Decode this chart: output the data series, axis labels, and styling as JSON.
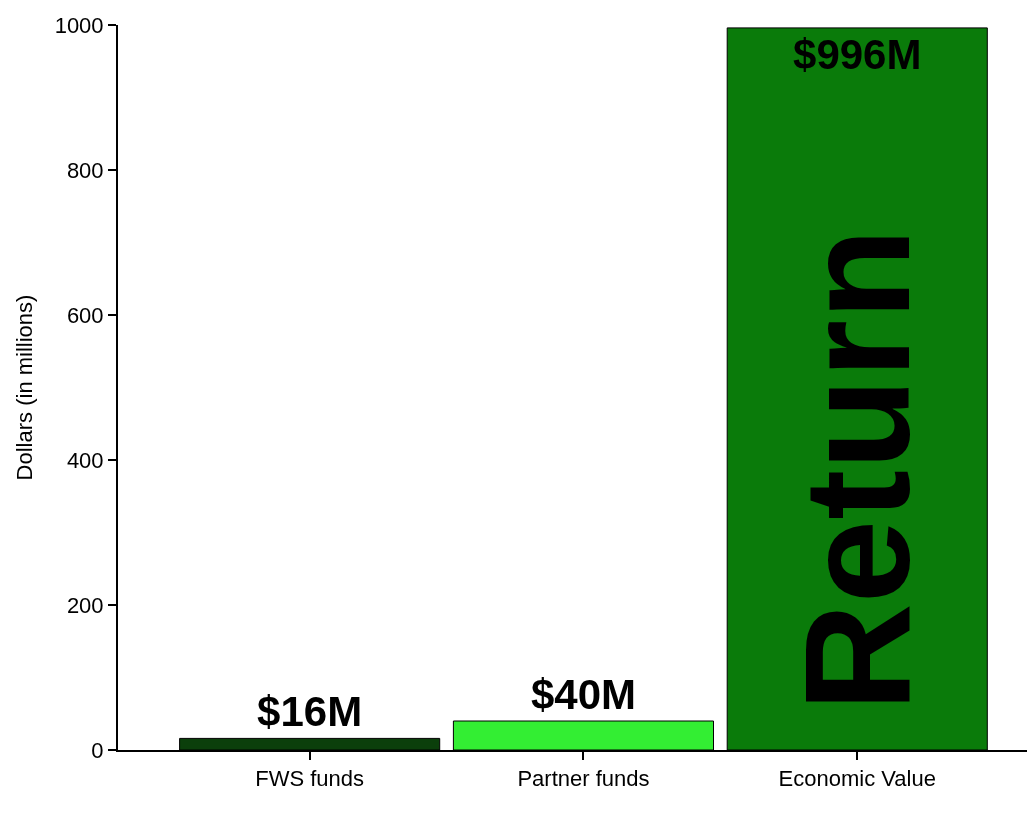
{
  "chart_data": {
    "type": "bar",
    "ylabel": "Dollars (in millions)",
    "categories": [
      "FWS funds",
      "Partner funds",
      "Economic Value"
    ],
    "values": [
      16,
      40,
      996
    ],
    "colors": [
      "#0b3f0b",
      "#33ee33",
      "#0a7b0a"
    ],
    "value_labels": [
      "$16M",
      "$40M",
      "$996M"
    ],
    "ylim": [
      0,
      1000
    ],
    "yticks": [
      0,
      200,
      400,
      600,
      800,
      1000
    ],
    "annotations": [
      "Return"
    ]
  }
}
